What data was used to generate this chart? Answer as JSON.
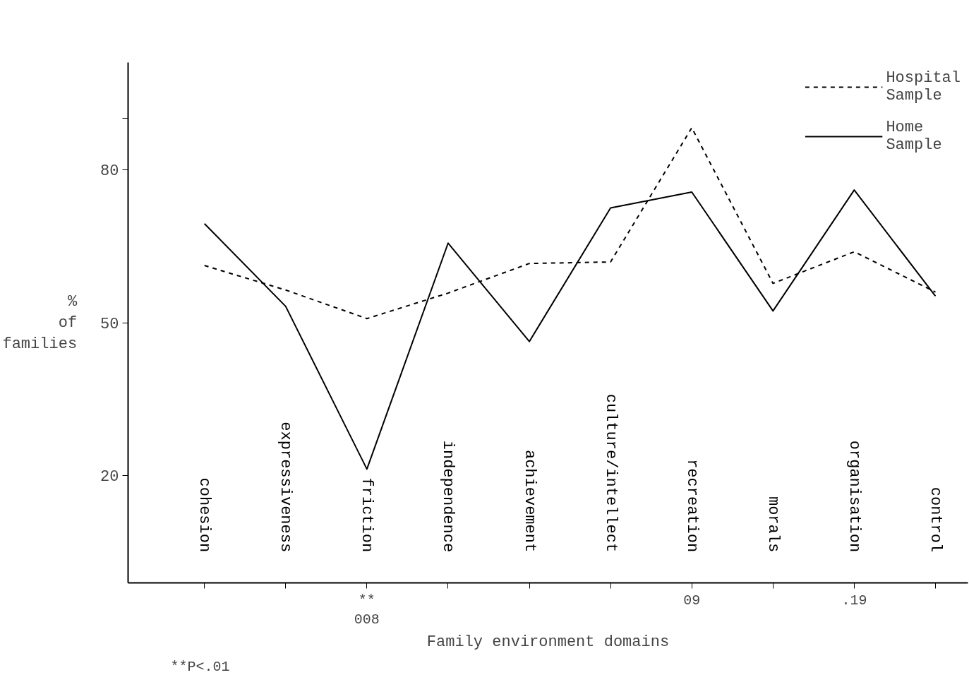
{
  "chart_data": {
    "type": "line",
    "xlabel": "Family environment domains",
    "ylabel": "% of families",
    "categories": [
      "cohesion",
      "expressiveness",
      "friction",
      "independence",
      "achievement",
      "culture/intellect",
      "recreation",
      "morals",
      "organisation",
      "control"
    ],
    "series": [
      {
        "name": "Hospital Sample",
        "color": "#000000",
        "line_style": "dashed",
        "values": [
          61.2,
          56.4,
          50.8,
          55.8,
          61.6,
          61.9,
          88.2,
          57.7,
          63.9,
          56.0
        ]
      },
      {
        "name": "Home Sample",
        "color": "#000000",
        "line_style": "solid",
        "values": [
          69.4,
          53.2,
          21.3,
          65.6,
          46.3,
          72.5,
          75.6,
          52.3,
          76.0,
          55.2
        ]
      }
    ],
    "ylim": [
      -1,
      101
    ],
    "yticks": [
      20,
      50,
      80,
      {
        "value": 90,
        "label": null
      }
    ],
    "grid": false,
    "legend": "top right",
    "marker": "none",
    "annotations": [
      "**",
      "008",
      "09",
      ".19",
      "**P<.01"
    ]
  }
}
